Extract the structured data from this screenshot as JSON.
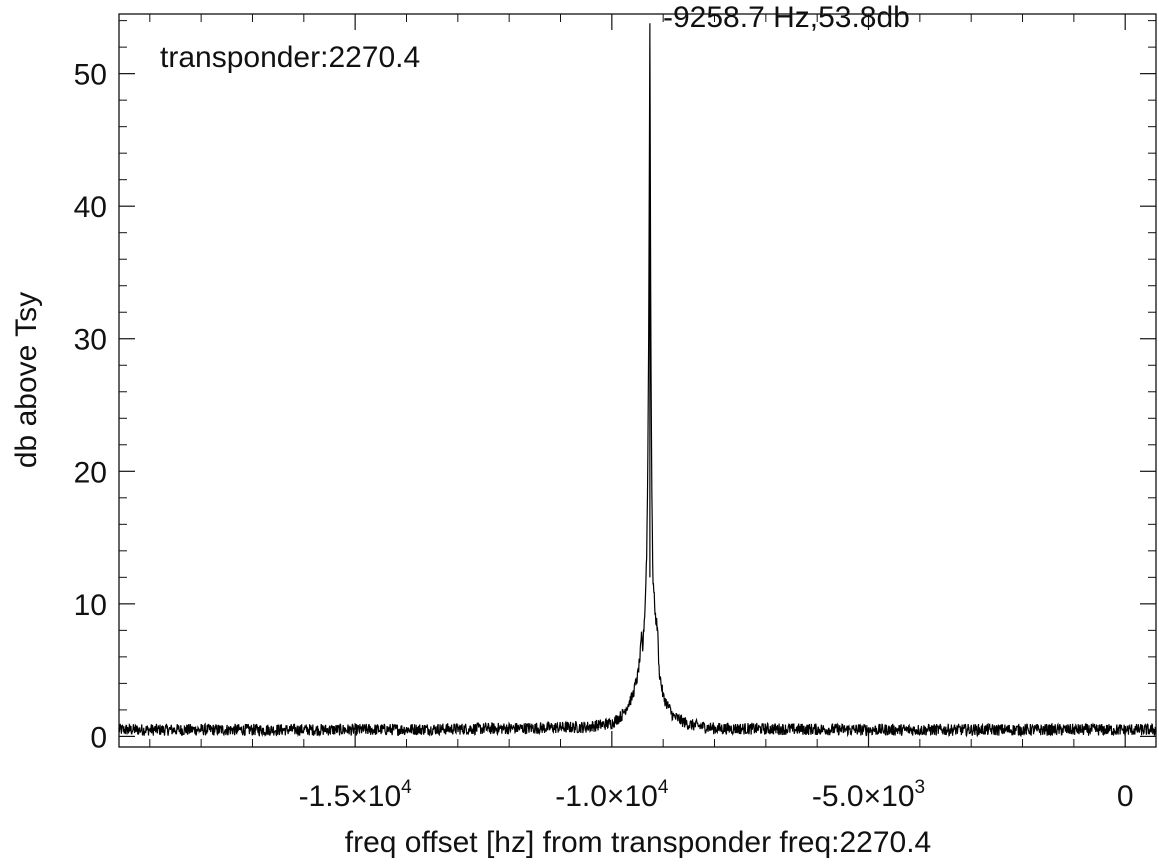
{
  "chart_data": {
    "type": "line",
    "title": "",
    "xlabel": "freq offset [hz] from transponder freq:2270.4",
    "ylabel": "db above Tsy",
    "annotation": "transponder:2270.4",
    "peak_label": "-9258.7 Hz,53.8db",
    "xlim": [
      -19600,
      600
    ],
    "ylim": [
      -0.8,
      54.5
    ],
    "x_ticks": [
      {
        "value": -15000,
        "mantissa": "-1.5",
        "exponent": "4"
      },
      {
        "value": -10000,
        "mantissa": "-1.0",
        "exponent": "4"
      },
      {
        "value": -5000,
        "mantissa": "-5.0",
        "exponent": "3"
      },
      {
        "value": 0,
        "label": "0"
      }
    ],
    "y_ticks": [
      0,
      10,
      20,
      30,
      40,
      50
    ],
    "grid": false,
    "color": "#000000",
    "series": [
      {
        "noise_floor": 0.5,
        "peak": {
          "x": -9258.7,
          "y": 53.8
        },
        "points": [
          [
            -19600,
            0.5
          ],
          [
            -15000,
            0.5
          ],
          [
            -12000,
            0.6
          ],
          [
            -10500,
            0.7
          ],
          [
            -10000,
            1.0
          ],
          [
            -9800,
            1.6
          ],
          [
            -9600,
            3.0
          ],
          [
            -9500,
            4.5
          ],
          [
            -9450,
            6.0
          ],
          [
            -9420,
            7.6
          ],
          [
            -9400,
            6.5
          ],
          [
            -9350,
            10.0
          ],
          [
            -9320,
            14.0
          ],
          [
            -9300,
            20.0
          ],
          [
            -9280,
            32.0
          ],
          [
            -9258.7,
            53.8
          ],
          [
            -9240,
            30.0
          ],
          [
            -9220,
            18.0
          ],
          [
            -9200,
            12.0
          ],
          [
            -9150,
            9.0
          ],
          [
            -9110,
            8.2
          ],
          [
            -9080,
            5.0
          ],
          [
            -9000,
            3.0
          ],
          [
            -8800,
            1.5
          ],
          [
            -8500,
            0.9
          ],
          [
            -8000,
            0.6
          ],
          [
            -5000,
            0.5
          ],
          [
            0,
            0.5
          ],
          [
            600,
            0.5
          ]
        ]
      }
    ]
  }
}
